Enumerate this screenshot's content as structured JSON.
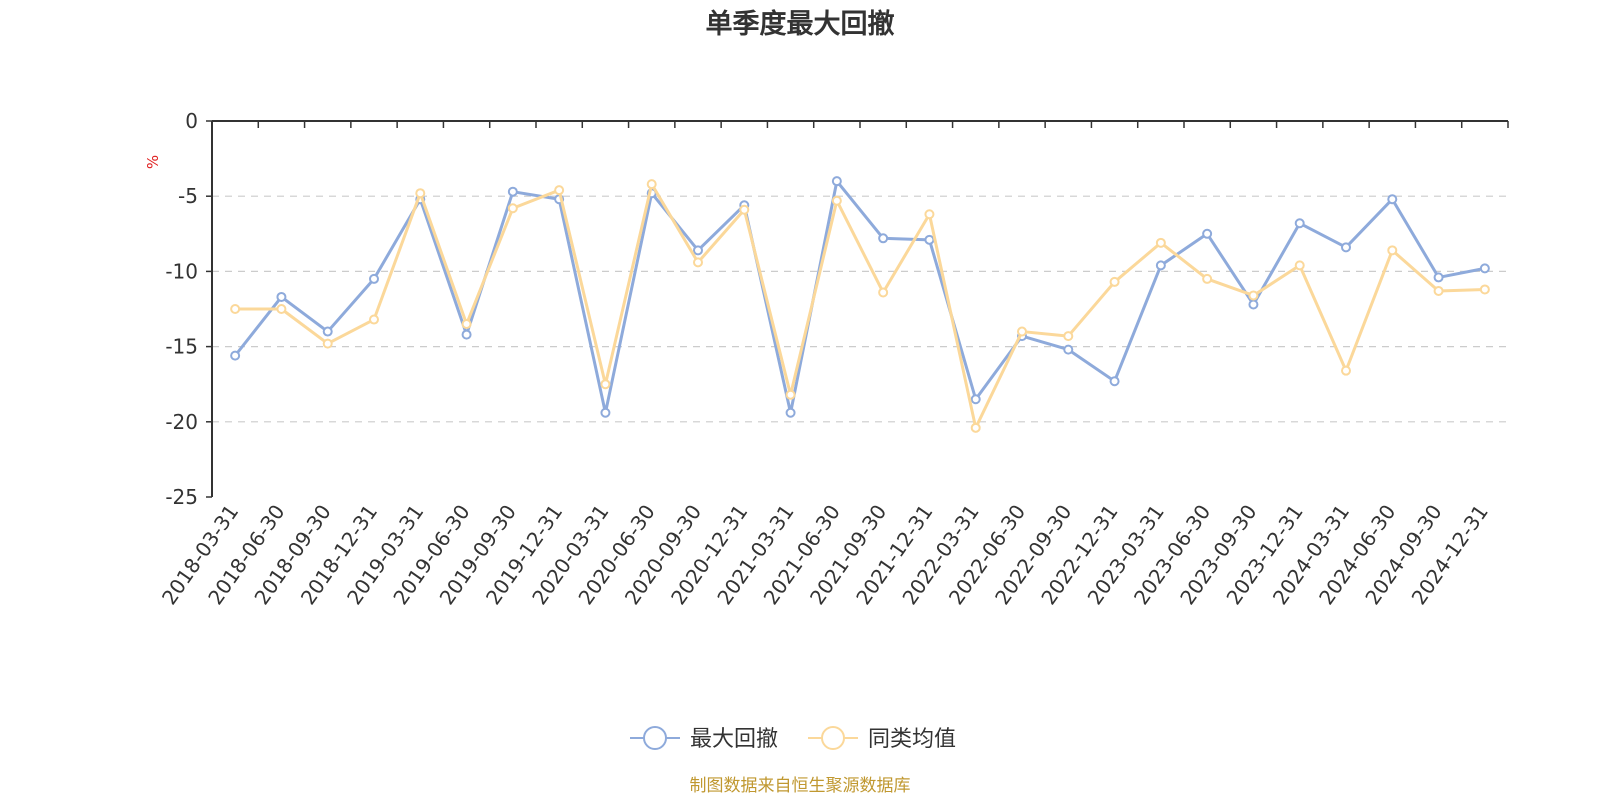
{
  "chart_data": {
    "type": "line",
    "title": "单季度最大回撤",
    "ylabel": "%",
    "ylim": [
      -25,
      0
    ],
    "yticks": [
      0,
      -5,
      -10,
      -15,
      -20,
      -25
    ],
    "grid": true,
    "legend_position": "bottom-center",
    "categories": [
      "2018-03-31",
      "2018-06-30",
      "2018-09-30",
      "2018-12-31",
      "2019-03-31",
      "2019-06-30",
      "2019-09-30",
      "2019-12-31",
      "2020-03-31",
      "2020-06-30",
      "2020-09-30",
      "2020-12-31",
      "2021-03-31",
      "2021-06-30",
      "2021-09-30",
      "2021-12-31",
      "2022-03-31",
      "2022-06-30",
      "2022-09-30",
      "2022-12-31",
      "2023-03-31",
      "2023-06-30",
      "2023-09-30",
      "2023-12-31",
      "2024-03-31",
      "2024-06-30",
      "2024-09-30",
      "2024-12-31"
    ],
    "series": [
      {
        "name": "最大回撤",
        "color": "#8eaadb",
        "values": [
          -15.6,
          -11.7,
          -14.0,
          -10.5,
          -5.2,
          -14.2,
          -4.7,
          -5.2,
          -19.4,
          -4.8,
          -8.6,
          -5.6,
          -19.4,
          -4.0,
          -7.8,
          -7.9,
          -18.5,
          -14.3,
          -15.2,
          -17.3,
          -9.6,
          -7.5,
          -12.2,
          -6.8,
          -8.4,
          -5.2,
          -10.4,
          -9.8
        ]
      },
      {
        "name": "同类均值",
        "color": "#fbd89a",
        "values": [
          -12.5,
          -12.5,
          -14.8,
          -13.2,
          -4.8,
          -13.5,
          -5.8,
          -4.6,
          -17.5,
          -4.2,
          -9.4,
          -5.9,
          -18.2,
          -5.3,
          -11.4,
          -6.2,
          -20.4,
          -14.0,
          -14.3,
          -10.7,
          -8.1,
          -10.5,
          -11.6,
          -9.6,
          -16.6,
          -8.6,
          -11.3,
          -11.2
        ]
      }
    ],
    "source_text": "制图数据来自恒生聚源数据库",
    "source_color": "#c09830",
    "ylabel_color": "#e02020"
  }
}
